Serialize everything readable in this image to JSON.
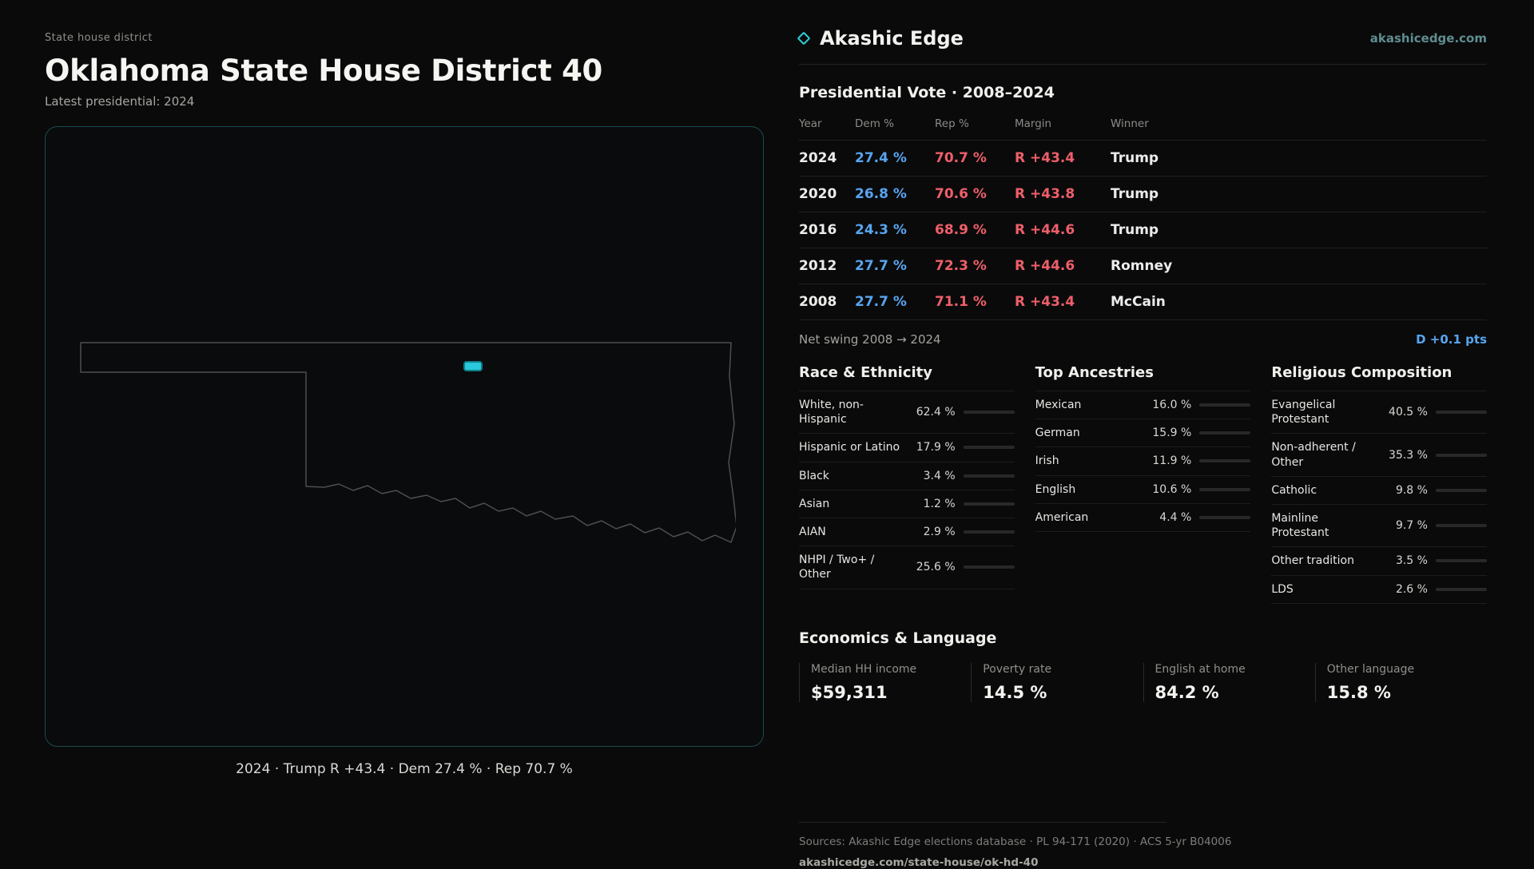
{
  "page": {
    "eyebrow": "State house district",
    "title": "Oklahoma State House District 40",
    "subtitle": "Latest presidential: 2024",
    "map_caption": "2024 · Trump R +43.4 · Dem 27.4 % · Rep 70.7 %"
  },
  "brand": {
    "name": "Akashic Edge",
    "site": "akashicedge.com"
  },
  "colors": {
    "accent_teal": "#2cd1d6",
    "dem_blue": "#58a5ef",
    "rep_red": "#ee5f69",
    "background": "#0a0a0b",
    "bar_fill": "#c2c2be",
    "district_marker": "#29c8da"
  },
  "chart_data": [
    {
      "id": "presidential-vote",
      "type": "table",
      "title": "Presidential Vote · 2008–2024",
      "columns": [
        "Year",
        "Dem %",
        "Rep %",
        "Margin",
        "Winner"
      ],
      "rows": [
        {
          "year": "2024",
          "dem": "27.4 %",
          "rep": "70.7 %",
          "margin": "R +43.4",
          "winner": "Trump"
        },
        {
          "year": "2020",
          "dem": "26.8 %",
          "rep": "70.6 %",
          "margin": "R +43.8",
          "winner": "Trump"
        },
        {
          "year": "2016",
          "dem": "24.3 %",
          "rep": "68.9 %",
          "margin": "R +44.6",
          "winner": "Trump"
        },
        {
          "year": "2012",
          "dem": "27.7 %",
          "rep": "72.3 %",
          "margin": "R +44.6",
          "winner": "Romney"
        },
        {
          "year": "2008",
          "dem": "27.7 %",
          "rep": "71.1 %",
          "margin": "R +43.4",
          "winner": "McCain"
        }
      ],
      "net_swing_label": "Net swing 2008 → 2024",
      "net_swing_value": "D +0.1 pts"
    },
    {
      "id": "race-ethnicity",
      "type": "bar",
      "title": "Race & Ethnicity",
      "xlim": [
        0,
        100
      ],
      "categories": [
        "White, non-Hispanic",
        "Hispanic or Latino",
        "Black",
        "Asian",
        "AIAN",
        "NHPI / Two+ / Other"
      ],
      "values": [
        62.4,
        17.9,
        3.4,
        1.2,
        2.9,
        25.6
      ],
      "labels": [
        "62.4 %",
        "17.9 %",
        "3.4 %",
        "1.2 %",
        "2.9 %",
        "25.6 %"
      ]
    },
    {
      "id": "top-ancestries",
      "type": "bar",
      "title": "Top Ancestries",
      "xlim": [
        0,
        100
      ],
      "categories": [
        "Mexican",
        "German",
        "Irish",
        "English",
        "American"
      ],
      "values": [
        16.0,
        15.9,
        11.9,
        10.6,
        4.4
      ],
      "labels": [
        "16.0 %",
        "15.9 %",
        "11.9 %",
        "10.6 %",
        "4.4 %"
      ]
    },
    {
      "id": "religious-composition",
      "type": "bar",
      "title": "Religious Composition",
      "xlim": [
        0,
        100
      ],
      "categories": [
        "Evangelical Protestant",
        "Non-adherent / Other",
        "Catholic",
        "Mainline Protestant",
        "Other tradition",
        "LDS"
      ],
      "values": [
        40.5,
        35.3,
        9.8,
        9.7,
        3.5,
        2.6
      ],
      "labels": [
        "40.5 %",
        "35.3 %",
        "9.8 %",
        "9.7 %",
        "3.5 %",
        "2.6 %"
      ]
    },
    {
      "id": "economics-language",
      "type": "table",
      "title": "Economics & Language",
      "stats": [
        {
          "label": "Median HH income",
          "value": "$59,311"
        },
        {
          "label": "Poverty rate",
          "value": "14.5 %"
        },
        {
          "label": "English at home",
          "value": "84.2 %"
        },
        {
          "label": "Other language",
          "value": "15.8 %"
        }
      ]
    }
  ],
  "footer": {
    "sources": "Sources: Akashic Edge elections database · PL 94-171 (2020) · ACS 5-yr B04006",
    "permalink": "akashicedge.com/state-house/ok-hd-40"
  }
}
